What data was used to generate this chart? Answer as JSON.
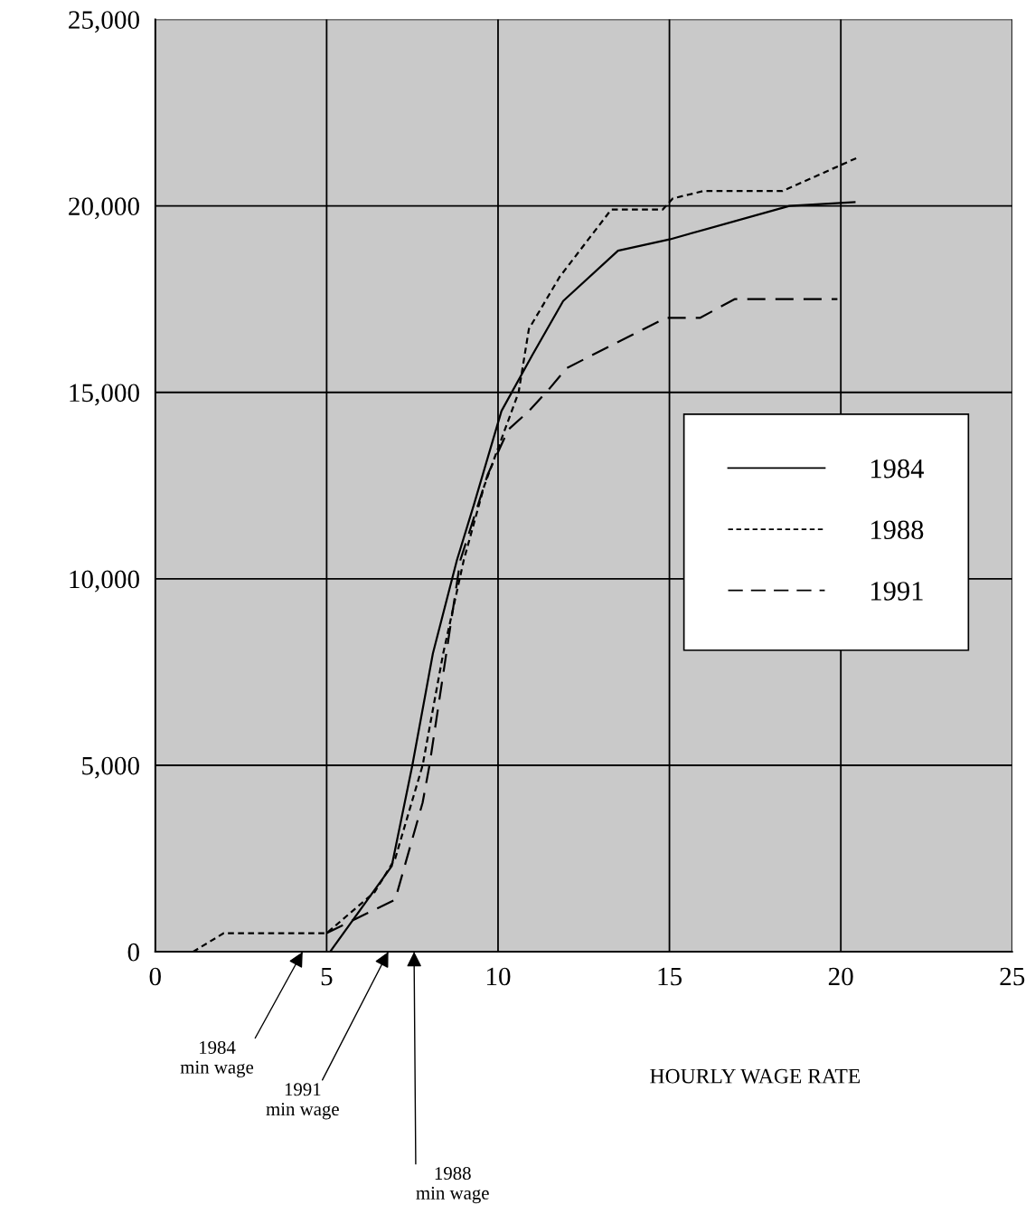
{
  "chart_data": {
    "type": "line",
    "xlabel": "HOURLY WAGE RATE",
    "xlim": [
      0,
      25
    ],
    "xticks": [
      0,
      5,
      10,
      15,
      20,
      25
    ],
    "ylim": [
      0,
      25000
    ],
    "yticks": [
      {
        "value": 0,
        "label": "0"
      },
      {
        "value": 5000,
        "label": "5,000"
      },
      {
        "value": 10000,
        "label": "10,000"
      },
      {
        "value": 15000,
        "label": "15,000"
      },
      {
        "value": 20000,
        "label": "20,000"
      },
      {
        "value": 25000,
        "label": "25,000"
      }
    ],
    "grid": true,
    "legend": "right",
    "marker": "none",
    "series": [
      {
        "name": "1984",
        "color": "#000000",
        "line_style": "solid",
        "x": [
          5.1,
          6.9,
          7.5,
          8.1,
          8.8,
          9.3,
          10.1,
          11.0,
          11.9,
          13.5,
          15.0,
          18.5,
          20.4
        ],
        "values": [
          0,
          2300,
          5000,
          8000,
          10500,
          12000,
          14500,
          16000,
          17450,
          18800,
          19100,
          20000,
          20100
        ]
      },
      {
        "name": "1988",
        "color": "#000000",
        "line_style": "dotted",
        "x": [
          1.1,
          2.0,
          5.0,
          6.4,
          7.0,
          7.8,
          8.4,
          9.0,
          9.6,
          10.6,
          10.9,
          11.8,
          13.3,
          14.8,
          15.1,
          16.0,
          18.3,
          20.5
        ],
        "values": [
          0,
          500,
          500,
          1600,
          2500,
          5000,
          8000,
          10500,
          12500,
          15000,
          16700,
          18100,
          19900,
          19900,
          20200,
          20400,
          20400,
          21300
        ]
      },
      {
        "name": "1991",
        "color": "#000000",
        "line_style": "dashed",
        "x": [
          5.0,
          7.0,
          7.8,
          8.0,
          8.9,
          9.7,
          10.3,
          10.9,
          11.5,
          12.0,
          14.9,
          15.9,
          16.9,
          19.9
        ],
        "values": [
          500,
          1400,
          4000,
          5000,
          10500,
          12800,
          14000,
          14500,
          15100,
          15650,
          17000,
          17000,
          17500,
          17500
        ]
      }
    ],
    "annotations": [
      "1984\nmin wage",
      "1991\nmin wage",
      "1988\nmin wage"
    ]
  }
}
